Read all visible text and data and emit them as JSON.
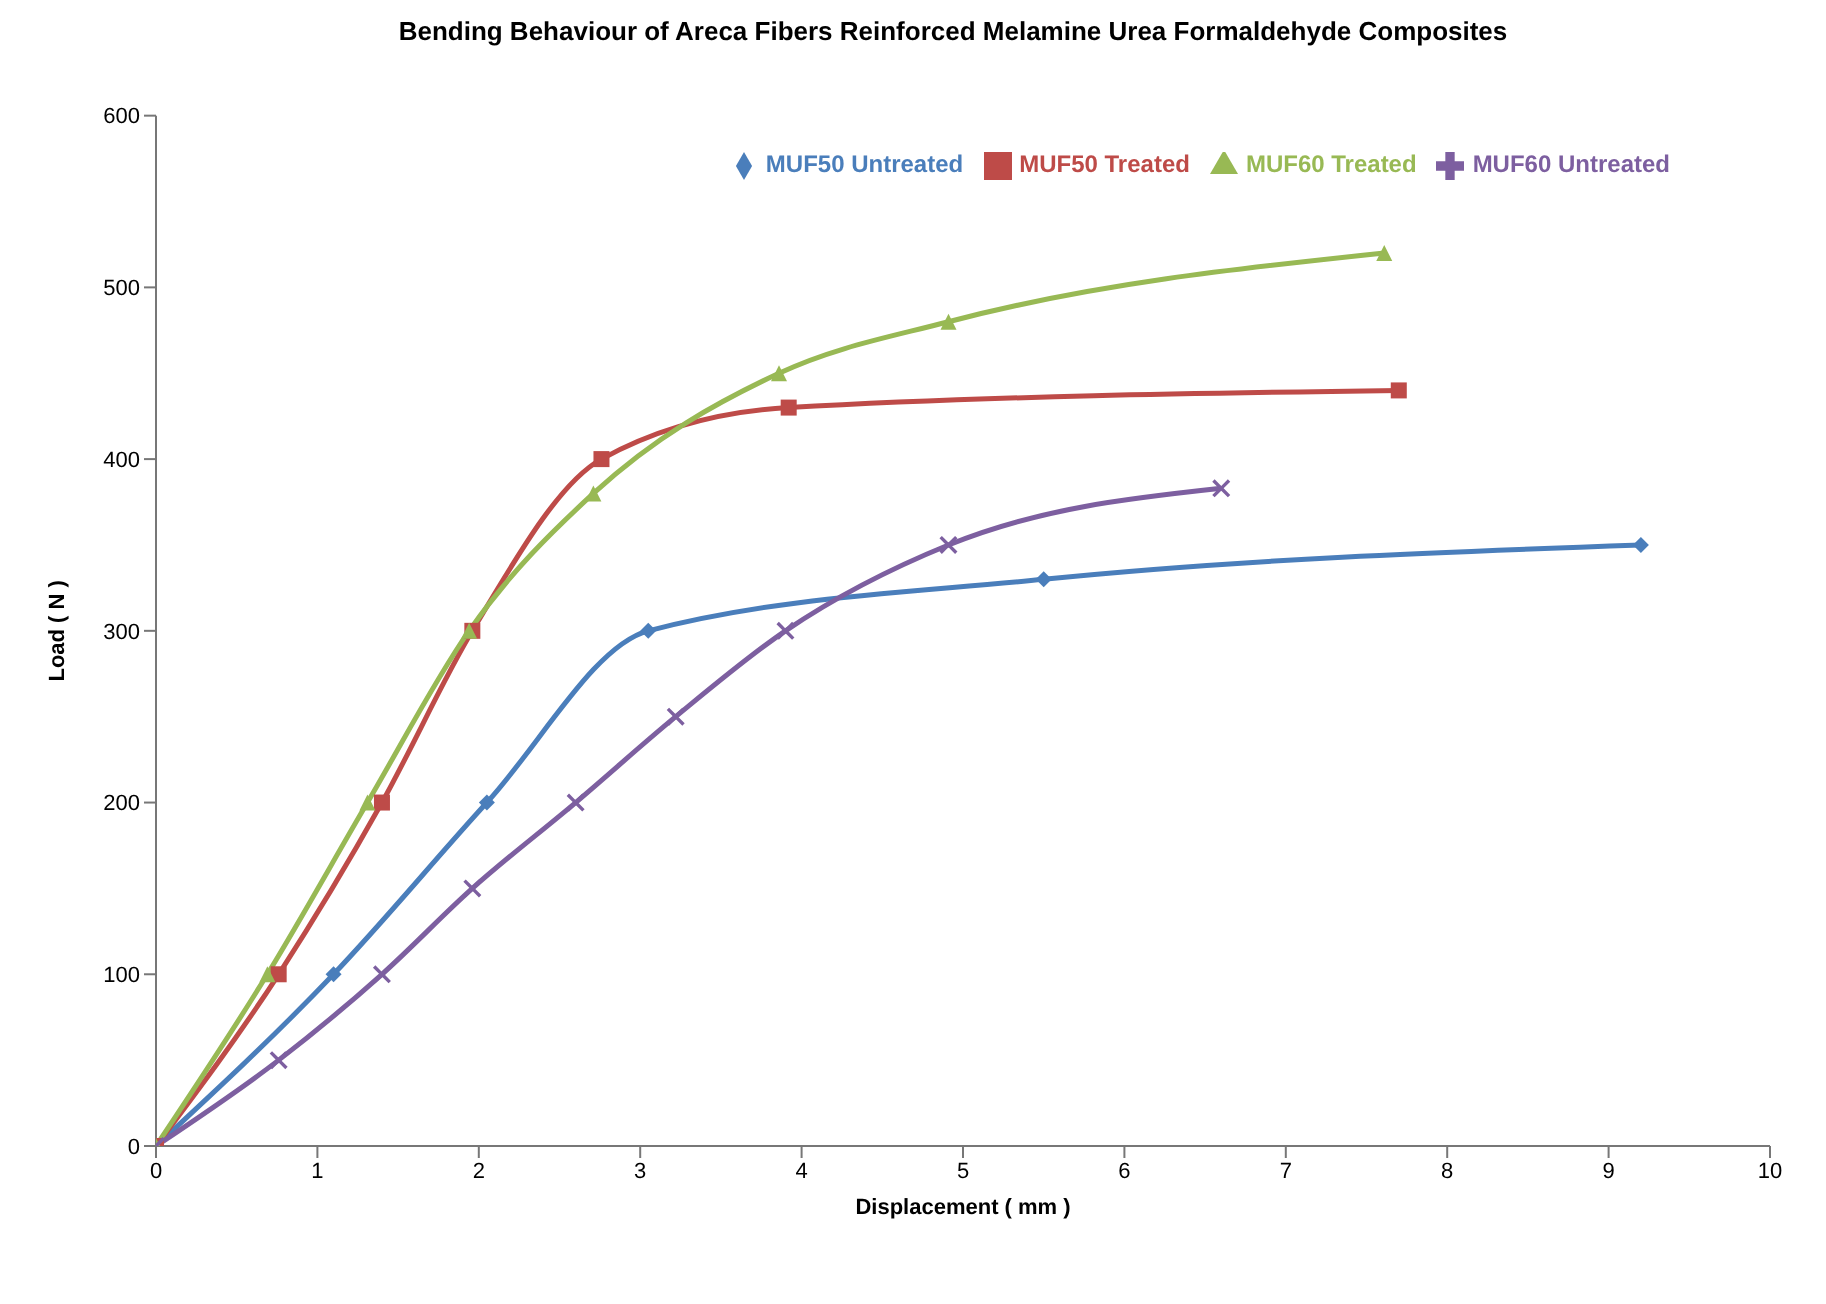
{
  "chart_data": {
    "type": "line",
    "title": "Bending Behaviour of Areca Fibers Reinforced Melamine Urea Formaldehyde Composites",
    "xlabel": "Displacement  ( mm )",
    "ylabel": "Load ( N )",
    "xlim": [
      0,
      10
    ],
    "xticks": [
      0,
      1,
      2,
      3,
      4,
      5,
      6,
      7,
      8,
      9,
      10
    ],
    "ylim": [
      0,
      600
    ],
    "yticks": [
      0,
      100,
      200,
      300,
      400,
      500,
      600
    ],
    "grid": false,
    "legend": "top right",
    "series": [
      {
        "name": "MUF50 Untreated",
        "color": "#4a7ebb",
        "marker": "diamond",
        "x": [
          0,
          1.1,
          2.05,
          3.05,
          5.5,
          9.2
        ],
        "values": [
          0,
          100,
          200,
          300,
          330,
          350
        ]
      },
      {
        "name": "MUF50 Treated",
        "color": "#be4b48",
        "marker": "square",
        "x": [
          0,
          0.76,
          1.4,
          1.96,
          2.76,
          3.92,
          7.7
        ],
        "values": [
          0,
          100,
          200,
          300,
          400,
          430,
          440
        ]
      },
      {
        "name": "MUF60 Treated",
        "color": "#98b954",
        "marker": "triangle",
        "x": [
          0,
          0.69,
          1.31,
          1.94,
          2.71,
          3.86,
          4.91,
          7.61
        ],
        "values": [
          0,
          100,
          200,
          300,
          380,
          450,
          480,
          520
        ]
      },
      {
        "name": "MUF60 Untreated",
        "color": "#7d5fa0",
        "marker": "cross",
        "x": [
          0,
          0.76,
          1.4,
          1.96,
          2.6,
          3.22,
          3.9,
          4.91,
          6.6
        ],
        "values": [
          0,
          50,
          100,
          150,
          200,
          250,
          300,
          350,
          383
        ]
      }
    ]
  }
}
